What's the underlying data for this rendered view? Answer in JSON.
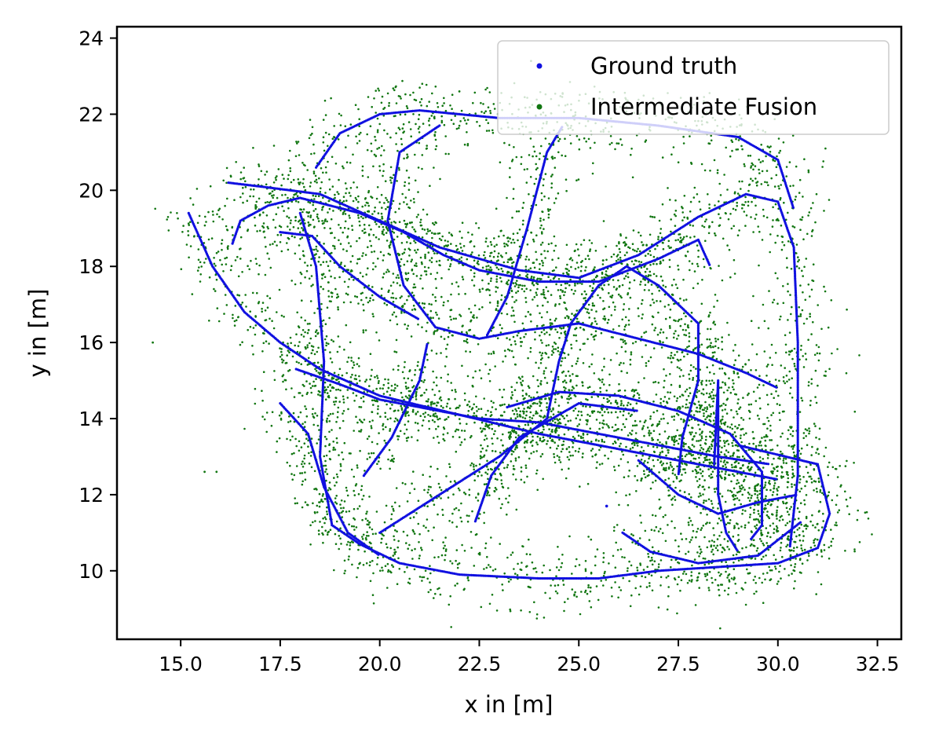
{
  "chart_data": {
    "type": "scatter",
    "title": "",
    "xlabel": "x in [m]",
    "ylabel": "y in [m]",
    "xlim": [
      13.4,
      33.1
    ],
    "ylim": [
      8.2,
      24.3
    ],
    "xticks": [
      15.0,
      17.5,
      20.0,
      22.5,
      25.0,
      27.5,
      30.0,
      32.5
    ],
    "xtick_labels": [
      "15.0",
      "17.5",
      "20.0",
      "22.5",
      "25.0",
      "27.5",
      "30.0",
      "32.5"
    ],
    "yticks": [
      10,
      12,
      14,
      16,
      18,
      20,
      22,
      24
    ],
    "ytick_labels": [
      "10",
      "12",
      "14",
      "16",
      "18",
      "20",
      "22",
      "24"
    ],
    "grid": false,
    "legend_position": "top-right",
    "series": [
      {
        "name": "Ground truth",
        "color": "#1010e0",
        "kind": "trajectory",
        "paths": [
          [
            [
              15.2,
              19.4
            ],
            [
              15.8,
              18.0
            ],
            [
              16.6,
              16.8
            ],
            [
              17.5,
              16.0
            ],
            [
              18.5,
              15.3
            ],
            [
              20.0,
              14.6
            ],
            [
              22.0,
              14.1
            ],
            [
              24.0,
              13.6
            ],
            [
              26.0,
              13.2
            ],
            [
              28.0,
              12.8
            ],
            [
              30.0,
              12.4
            ]
          ],
          [
            [
              16.3,
              18.6
            ],
            [
              16.5,
              19.2
            ],
            [
              17.2,
              19.6
            ],
            [
              18.0,
              19.8
            ],
            [
              19.5,
              19.4
            ],
            [
              20.6,
              18.9
            ],
            [
              21.6,
              18.3
            ],
            [
              22.5,
              17.9
            ],
            [
              24.0,
              17.6
            ],
            [
              25.5,
              17.6
            ],
            [
              27.0,
              18.2
            ],
            [
              28.0,
              18.7
            ],
            [
              28.3,
              18.0
            ]
          ],
          [
            [
              16.2,
              20.2
            ],
            [
              17.0,
              20.1
            ],
            [
              18.5,
              19.9
            ],
            [
              20.0,
              19.2
            ],
            [
              21.5,
              18.5
            ],
            [
              23.5,
              17.9
            ],
            [
              25.0,
              17.7
            ],
            [
              26.5,
              18.3
            ],
            [
              28.0,
              19.3
            ],
            [
              29.2,
              19.9
            ],
            [
              30.0,
              19.7
            ],
            [
              30.4,
              18.5
            ],
            [
              30.5,
              16.0
            ],
            [
              30.5,
              12.5
            ],
            [
              30.3,
              10.6
            ]
          ],
          [
            [
              17.5,
              18.9
            ],
            [
              18.3,
              18.8
            ],
            [
              19.0,
              18.0
            ],
            [
              20.0,
              17.2
            ],
            [
              21.0,
              16.6
            ]
          ],
          [
            [
              18.0,
              19.4
            ],
            [
              18.4,
              18.0
            ],
            [
              18.6,
              15.5
            ],
            [
              18.5,
              13.0
            ],
            [
              18.8,
              11.2
            ],
            [
              19.5,
              10.7
            ],
            [
              20.5,
              10.2
            ],
            [
              22.0,
              9.9
            ],
            [
              24.0,
              9.8
            ],
            [
              25.5,
              9.8
            ],
            [
              27.0,
              10.0
            ],
            [
              28.5,
              10.1
            ],
            [
              30.0,
              10.2
            ],
            [
              31.0,
              10.6
            ],
            [
              31.3,
              11.5
            ],
            [
              31.0,
              12.8
            ],
            [
              30.2,
              13.0
            ],
            [
              29.0,
              13.3
            ]
          ],
          [
            [
              17.5,
              14.4
            ],
            [
              18.2,
              13.6
            ],
            [
              18.6,
              12.2
            ],
            [
              19.2,
              11.0
            ],
            [
              20.0,
              10.4
            ]
          ],
          [
            [
              21.5,
              21.7
            ],
            [
              20.5,
              21.0
            ],
            [
              20.2,
              19.2
            ],
            [
              20.6,
              17.5
            ],
            [
              21.4,
              16.4
            ],
            [
              22.5,
              16.1
            ],
            [
              23.5,
              16.3
            ],
            [
              25.0,
              16.5
            ],
            [
              26.5,
              16.1
            ],
            [
              28.0,
              15.7
            ],
            [
              29.2,
              15.2
            ],
            [
              30.0,
              14.8
            ]
          ],
          [
            [
              19.6,
              12.5
            ],
            [
              20.3,
              13.5
            ],
            [
              21.0,
              15.0
            ],
            [
              21.2,
              16.0
            ]
          ],
          [
            [
              20.0,
              11.0
            ],
            [
              21.5,
              12.0
            ],
            [
              23.0,
              13.0
            ],
            [
              24.2,
              14.0
            ],
            [
              24.5,
              15.5
            ],
            [
              24.8,
              16.5
            ],
            [
              25.5,
              17.5
            ],
            [
              26.2,
              18.0
            ],
            [
              27.0,
              17.5
            ],
            [
              28.0,
              16.5
            ],
            [
              28.0,
              15.0
            ],
            [
              27.6,
              13.5
            ],
            [
              27.5,
              12.5
            ]
          ],
          [
            [
              18.4,
              20.6
            ],
            [
              19.0,
              21.5
            ],
            [
              20.0,
              22.0
            ],
            [
              21.0,
              22.1
            ],
            [
              23.0,
              21.9
            ],
            [
              25.0,
              21.9
            ],
            [
              27.0,
              21.7
            ],
            [
              29.0,
              21.4
            ],
            [
              30.0,
              20.8
            ],
            [
              30.4,
              19.5
            ]
          ],
          [
            [
              22.7,
              16.2
            ],
            [
              23.2,
              17.2
            ],
            [
              23.7,
              19.0
            ],
            [
              24.2,
              21.0
            ],
            [
              24.6,
              21.7
            ]
          ],
          [
            [
              23.2,
              14.3
            ],
            [
              24.5,
              14.7
            ],
            [
              26.0,
              14.6
            ],
            [
              27.5,
              14.2
            ],
            [
              28.8,
              13.6
            ],
            [
              29.6,
              12.6
            ],
            [
              29.6,
              11.2
            ],
            [
              29.3,
              10.8
            ]
          ],
          [
            [
              22.4,
              11.3
            ],
            [
              22.8,
              12.5
            ],
            [
              23.5,
              13.5
            ],
            [
              25.0,
              14.4
            ],
            [
              26.5,
              14.2
            ]
          ],
          [
            [
              17.9,
              15.3
            ],
            [
              19.0,
              14.9
            ],
            [
              20.0,
              14.5
            ],
            [
              21.5,
              14.2
            ],
            [
              22.5,
              14.0
            ],
            [
              24.0,
              13.9
            ],
            [
              25.5,
              13.6
            ],
            [
              27.0,
              13.3
            ],
            [
              28.5,
              13.0
            ],
            [
              29.8,
              12.8
            ]
          ],
          [
            [
              26.1,
              11.0
            ],
            [
              26.8,
              10.5
            ],
            [
              28.0,
              10.2
            ],
            [
              29.5,
              10.4
            ],
            [
              30.6,
              11.3
            ]
          ],
          [
            [
              28.4,
              12.8
            ],
            [
              28.5,
              15.0
            ],
            [
              28.5,
              12.0
            ],
            [
              28.7,
              11.0
            ],
            [
              29.0,
              10.5
            ]
          ],
          [
            [
              26.5,
              12.9
            ],
            [
              27.5,
              12.0
            ],
            [
              28.5,
              11.5
            ],
            [
              29.5,
              11.8
            ],
            [
              30.5,
              12.0
            ]
          ]
        ],
        "isolated_points": [
          [
            25.7,
            11.7
          ]
        ]
      },
      {
        "name": "Intermediate Fusion",
        "color": "#117611",
        "kind": "noisy_estimate",
        "outliers": [
          [
            14.3,
            16.0
          ],
          [
            15.6,
            12.6
          ],
          [
            15.9,
            12.6
          ],
          [
            22.0,
            22.6
          ],
          [
            23.8,
            23.4
          ]
        ]
      }
    ]
  }
}
